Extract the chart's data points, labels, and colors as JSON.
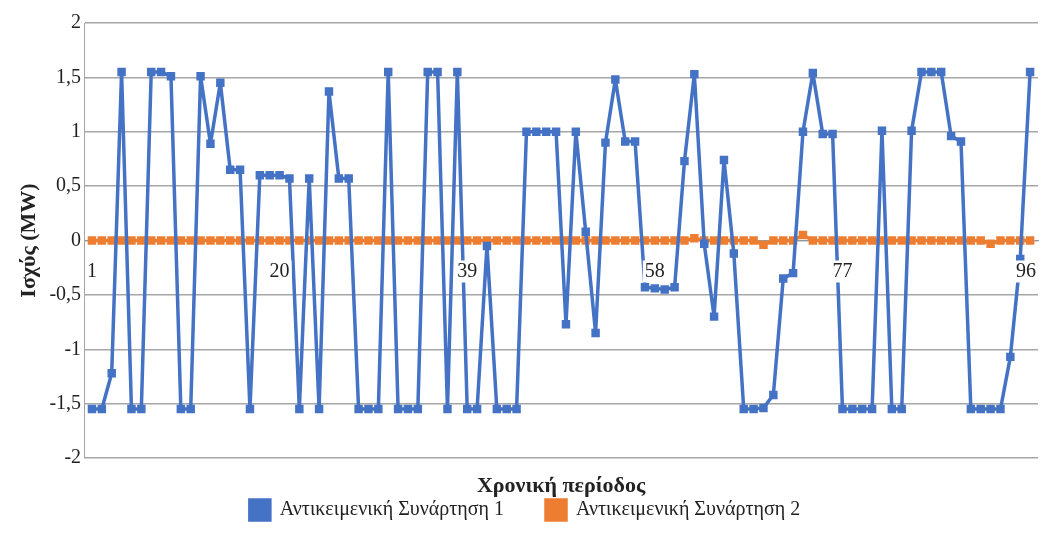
{
  "chart_data": {
    "type": "line",
    "xlabel": "Χρονική περίοδος",
    "ylabel": "Ισχύς (MW)",
    "categories": [
      "1",
      null,
      null,
      null,
      null,
      null,
      null,
      null,
      null,
      null,
      null,
      null,
      null,
      null,
      null,
      null,
      null,
      null,
      null,
      "20",
      null,
      null,
      null,
      null,
      null,
      null,
      null,
      null,
      null,
      null,
      null,
      null,
      null,
      null,
      null,
      null,
      null,
      null,
      "39",
      null,
      null,
      null,
      null,
      null,
      null,
      null,
      null,
      null,
      null,
      null,
      null,
      null,
      null,
      null,
      null,
      null,
      null,
      "58",
      null,
      null,
      null,
      null,
      null,
      null,
      null,
      null,
      null,
      null,
      null,
      null,
      null,
      null,
      null,
      null,
      null,
      null,
      "77",
      null,
      null,
      null,
      null,
      null,
      null,
      null,
      null,
      null,
      null,
      null,
      null,
      null,
      null,
      null,
      null,
      null,
      null,
      "96"
    ],
    "series": [
      {
        "name": "Αντικειμενική Συνάρτηση 1",
        "color": "#4472c4",
        "values": [
          -1.55,
          -1.55,
          -1.22,
          1.55,
          -1.55,
          -1.55,
          1.55,
          1.55,
          1.51,
          -1.55,
          -1.55,
          1.51,
          0.89,
          1.45,
          0.65,
          0.65,
          -1.55,
          0.6,
          0.6,
          0.6,
          0.57,
          -1.55,
          0.57,
          -1.55,
          1.37,
          0.57,
          0.57,
          -1.55,
          -1.55,
          -1.55,
          1.55,
          -1.55,
          -1.55,
          -1.55,
          1.55,
          1.55,
          -1.55,
          1.55,
          -1.55,
          -1.55,
          -0.05,
          -1.55,
          -1.55,
          -1.55,
          1.0,
          1.0,
          1.0,
          1.0,
          -0.77,
          1.0,
          0.08,
          -0.85,
          0.9,
          1.48,
          0.91,
          0.91,
          -0.43,
          -0.44,
          -0.45,
          -0.43,
          0.73,
          1.53,
          -0.03,
          -0.7,
          0.74,
          -0.12,
          -1.55,
          -1.55,
          -1.54,
          -1.42,
          -0.35,
          -0.3,
          1.0,
          1.54,
          0.98,
          0.98,
          -1.55,
          -1.55,
          -1.55,
          -1.55,
          1.01,
          -1.55,
          -1.55,
          1.01,
          1.55,
          1.55,
          1.55,
          0.96,
          0.91,
          -1.55,
          -1.55,
          -1.55,
          -1.55,
          -1.07,
          -0.17,
          1.55
        ]
      },
      {
        "name": "Αντικειμενική Συνάρτηση 2",
        "color": "#ed7d31",
        "values": [
          0,
          0,
          0,
          0,
          0,
          0,
          0,
          0,
          0,
          0,
          0,
          0,
          0,
          0,
          0,
          0,
          0,
          0,
          0,
          0,
          0,
          0,
          0,
          0,
          0,
          0,
          0,
          0,
          0,
          0,
          0,
          0,
          0,
          0,
          0,
          0,
          0,
          0,
          0,
          0,
          0,
          0,
          0,
          0,
          0,
          0,
          0,
          0,
          0,
          0,
          0,
          0,
          0,
          0,
          0,
          0,
          0,
          0,
          0,
          0,
          0,
          0.02,
          0,
          0,
          0,
          0,
          0,
          0,
          -0.04,
          0,
          0,
          0,
          0.05,
          0,
          0,
          0,
          0,
          0,
          0,
          0,
          0,
          0,
          0,
          0,
          0,
          0,
          0,
          0,
          0,
          0,
          0,
          -0.03,
          0,
          0,
          0,
          0
        ]
      }
    ],
    "ylim": [
      -2,
      2
    ],
    "yticks": [
      2,
      {
        "value": 1.5,
        "label": "1,5"
      },
      1,
      {
        "value": 0.5,
        "label": "0,5"
      },
      0,
      {
        "value": -0.5,
        "label": "-0,5"
      },
      -1,
      {
        "value": -1.5,
        "label": "-1,5"
      },
      -2
    ],
    "grid": "y",
    "legend": "bottom",
    "marker": "square",
    "line_style": "solid"
  }
}
